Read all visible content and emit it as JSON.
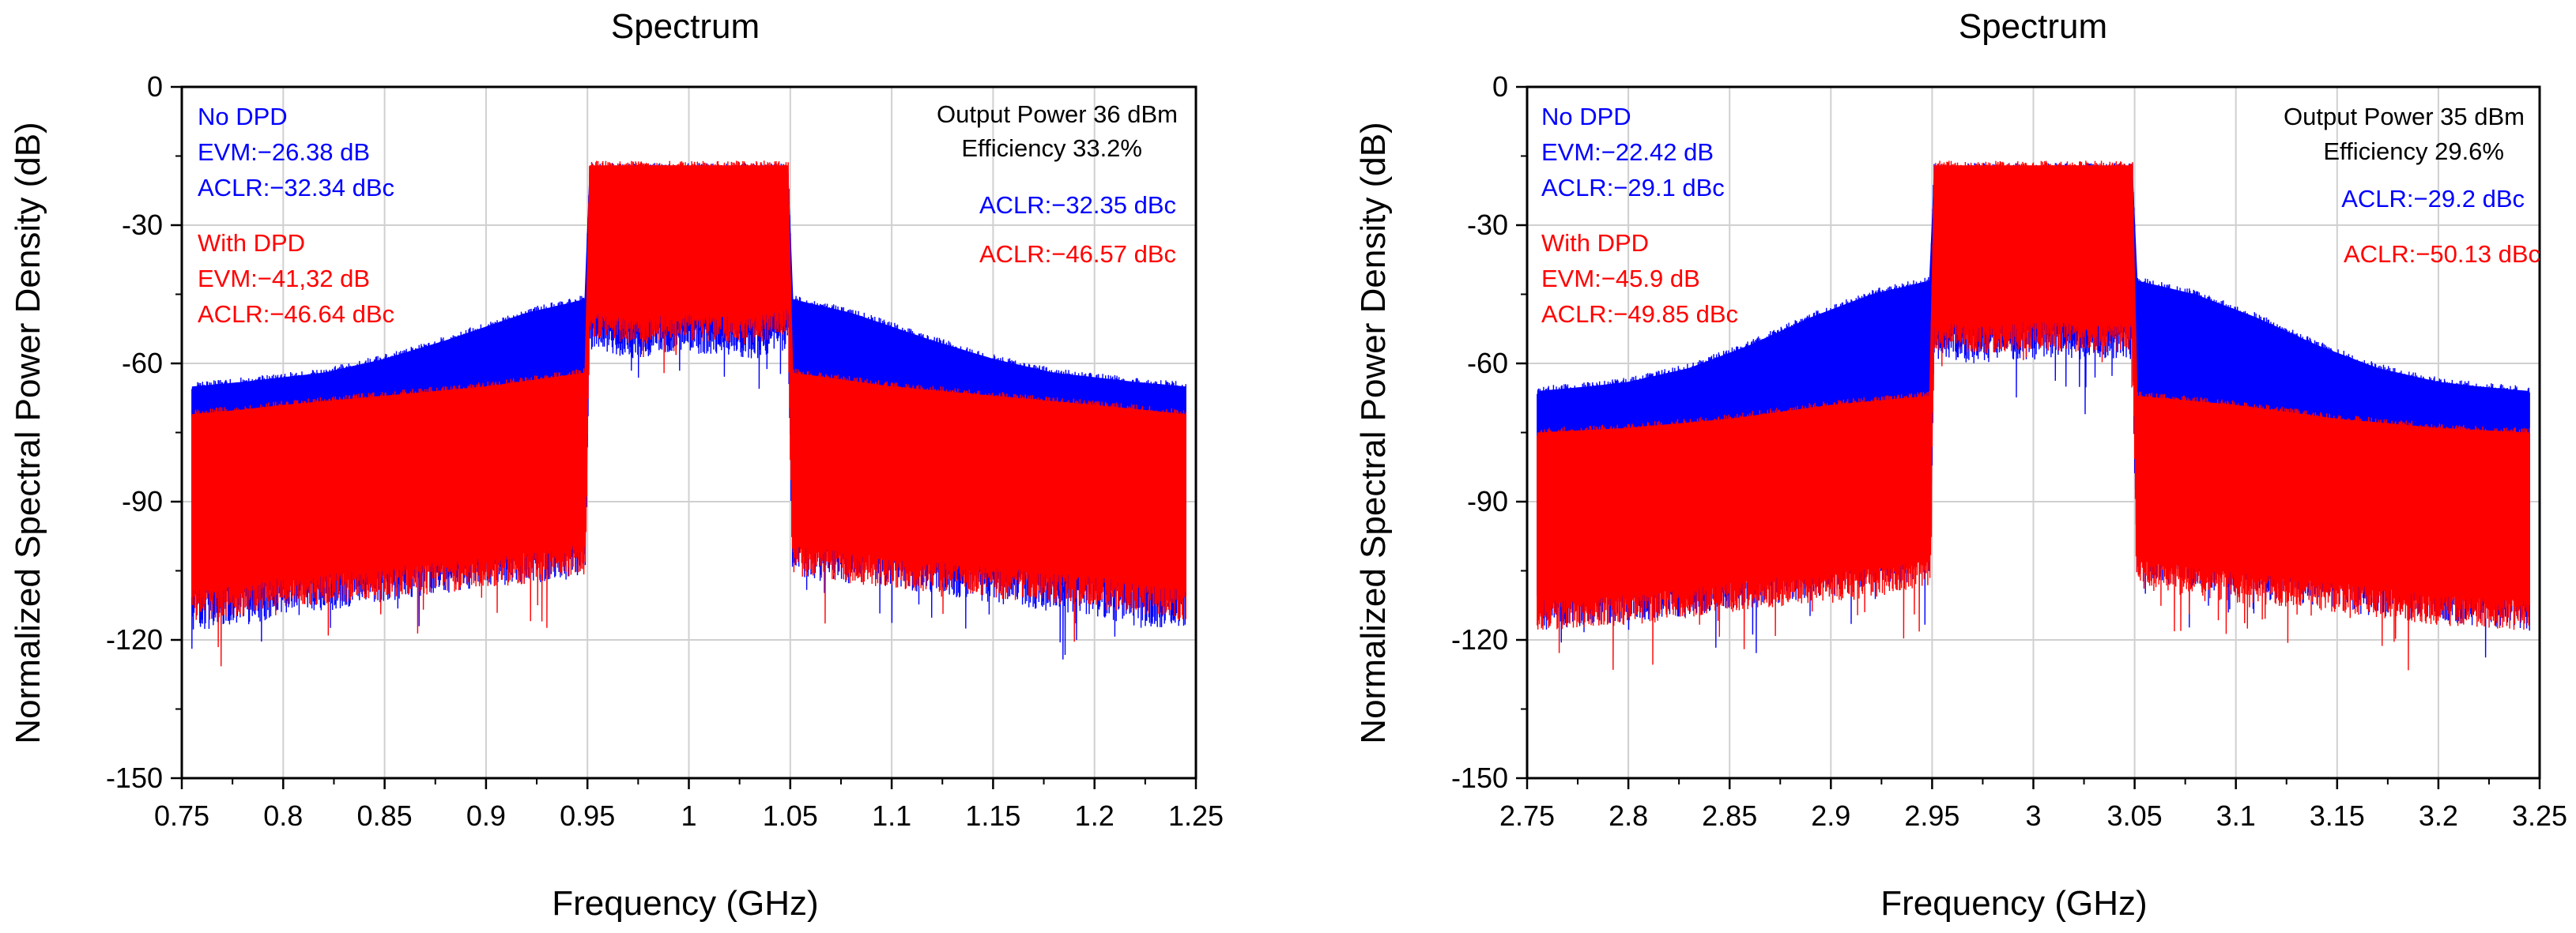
{
  "chart_data": [
    {
      "type": "line",
      "title": "Spectrum",
      "xlabel": "Frequency (GHz)",
      "ylabel": "Normalized Spectral Power Density (dB)",
      "xlim": [
        0.75,
        1.25
      ],
      "ylim": [
        -150,
        0
      ],
      "xticks": [
        0.75,
        0.8,
        0.85,
        0.9,
        0.95,
        1,
        1.05,
        1.1,
        1.15,
        1.2,
        1.25
      ],
      "xtick_labels": [
        "0.75",
        "0.8",
        "0.85",
        "0.9",
        "0.95",
        "1",
        "1.05",
        "1.1",
        "1.15",
        "1.2",
        "1.25"
      ],
      "yticks": [
        0,
        -30,
        -60,
        -90,
        -120,
        -150
      ],
      "ytick_labels": [
        "0",
        "-30",
        "-60",
        "-90",
        "-120",
        "-150"
      ],
      "grid": true,
      "series": [
        {
          "name": "No DPD",
          "color": "#0000ff",
          "x": [
            0.755,
            0.78,
            0.8,
            0.82,
            0.85,
            0.88,
            0.9,
            0.92,
            0.94,
            0.949,
            0.951,
            0.97,
            1.0,
            1.03,
            1.049,
            1.051,
            1.06,
            1.08,
            1.1,
            1.12,
            1.15,
            1.18,
            1.2,
            1.22,
            1.245
          ],
          "upper": [
            -64,
            -63,
            -62,
            -61,
            -58,
            -54,
            -51,
            -48,
            -46,
            -45,
            -16.5,
            -16.5,
            -16.5,
            -16.5,
            -16.5,
            -45,
            -46,
            -48,
            -51,
            -54,
            -58,
            -61,
            -62,
            -63,
            -64
          ],
          "lower": [
            -118,
            -117,
            -115,
            -114,
            -112,
            -110,
            -109,
            -108,
            -107,
            -106,
            -57,
            -59,
            -58,
            -59,
            -57,
            -106,
            -107,
            -108,
            -109,
            -110,
            -112,
            -114,
            -115,
            -117,
            -118
          ]
        },
        {
          "name": "With DPD",
          "color": "#ff0000",
          "x": [
            0.755,
            0.78,
            0.8,
            0.85,
            0.9,
            0.949,
            0.951,
            0.97,
            1.0,
            1.03,
            1.049,
            1.051,
            1.1,
            1.15,
            1.2,
            1.245
          ],
          "upper": [
            -70,
            -69,
            -68,
            -66,
            -64,
            -61,
            -16,
            -16,
            -16,
            -16,
            -16,
            -61,
            -64,
            -66,
            -68,
            -70
          ],
          "lower": [
            -116,
            -115,
            -113,
            -111,
            -109,
            -106,
            -54,
            -56,
            -55,
            -56,
            -54,
            -106,
            -109,
            -111,
            -113,
            -116
          ]
        }
      ],
      "annotations": {
        "no_dpd": [
          "No DPD",
          "EVM:−26.38 dB",
          "ACLR:−32.34 dBc"
        ],
        "with_dpd": [
          "With DPD",
          "EVM:−41,32 dB",
          "ACLR:−46.64 dBc"
        ],
        "output_power": "Output Power 36 dBm",
        "efficiency": "Efficiency 33.2%",
        "aclr_blue": "ACLR:−32.35 dBc",
        "aclr_red": "ACLR:−46.57 dBc"
      }
    },
    {
      "type": "line",
      "title": "Spectrum",
      "xlabel": "Frequency (GHz)",
      "ylabel": "Normalized Spectral Power Density (dB)",
      "xlim": [
        2.75,
        3.25
      ],
      "ylim": [
        -150,
        0
      ],
      "xticks": [
        2.75,
        2.8,
        2.85,
        2.9,
        2.95,
        3,
        3.05,
        3.1,
        3.15,
        3.2,
        3.25
      ],
      "xtick_labels": [
        "2.75",
        "2.8",
        "2.85",
        "2.9",
        "2.95",
        "3",
        "3.05",
        "3.1",
        "3.15",
        "3.2",
        "3.25"
      ],
      "yticks": [
        0,
        -30,
        -60,
        -90,
        -120,
        -150
      ],
      "ytick_labels": [
        "0",
        "-30",
        "-60",
        "-90",
        "-120",
        "-150"
      ],
      "grid": true,
      "series": [
        {
          "name": "No DPD",
          "color": "#0000ff",
          "x": [
            2.755,
            2.78,
            2.8,
            2.83,
            2.86,
            2.89,
            2.92,
            2.949,
            2.951,
            2.97,
            3.0,
            3.03,
            3.049,
            3.051,
            3.08,
            3.11,
            3.14,
            3.17,
            3.2,
            3.22,
            3.245
          ],
          "upper": [
            -65,
            -64,
            -63,
            -60,
            -55,
            -49,
            -44,
            -41,
            -16.5,
            -16.5,
            -16.5,
            -16.5,
            -16.5,
            -41,
            -44,
            -49,
            -55,
            -60,
            -63,
            -64,
            -65
          ],
          "lower": [
            -118,
            -117,
            -116,
            -115,
            -113,
            -111,
            -109,
            -107,
            -59,
            -60,
            -59,
            -60,
            -59,
            -107,
            -109,
            -111,
            -113,
            -115,
            -116,
            -117,
            -118
          ]
        },
        {
          "name": "With DPD",
          "color": "#ff0000",
          "x": [
            2.755,
            2.8,
            2.85,
            2.9,
            2.949,
            2.951,
            2.97,
            3.0,
            3.03,
            3.049,
            3.051,
            3.1,
            3.15,
            3.2,
            3.245
          ],
          "upper": [
            -74,
            -73,
            -71,
            -68,
            -66,
            -16,
            -16,
            -16,
            -16,
            -16,
            -66,
            -68,
            -71,
            -73,
            -74
          ],
          "lower": [
            -118,
            -117,
            -114,
            -112,
            -109,
            -57,
            -58,
            -57,
            -58,
            -57,
            -109,
            -112,
            -114,
            -117,
            -118
          ]
        }
      ],
      "annotations": {
        "no_dpd": [
          "No DPD",
          "EVM:−22.42 dB",
          "ACLR:−29.1 dBc"
        ],
        "with_dpd": [
          "With DPD",
          "EVM:−45.9 dB",
          "ACLR:−49.85 dBc"
        ],
        "output_power": "Output Power 35 dBm",
        "efficiency": "Efficiency 29.6%",
        "aclr_blue": "ACLR:−29.2 dBc",
        "aclr_red": "ACLR:−50.13 dBc"
      }
    }
  ]
}
